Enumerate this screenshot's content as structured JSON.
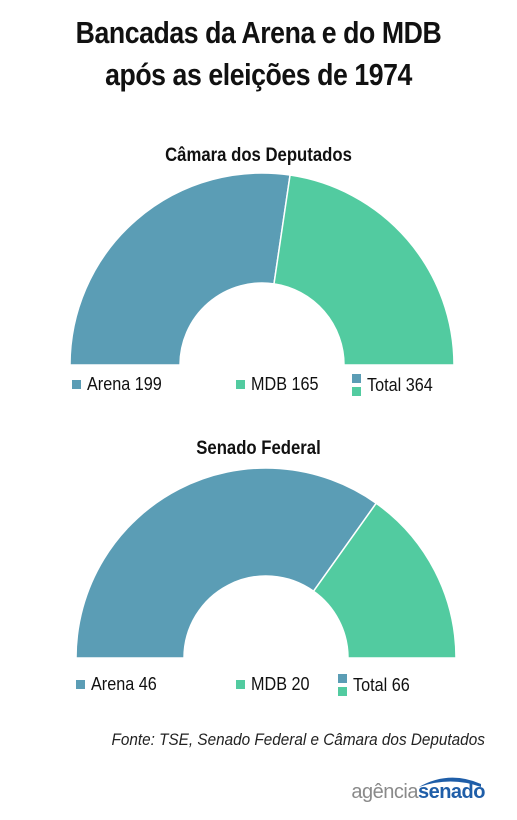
{
  "title": {
    "line1": "Bancadas da Arena e do MDB",
    "line2": "após as eleições de 1974"
  },
  "colors": {
    "arena": "#5b9db5",
    "mdb": "#52cba0"
  },
  "chart_data": [
    {
      "type": "pie",
      "subtype": "half-donut",
      "title": "Câmara dos Deputados",
      "series": [
        {
          "name": "Arena",
          "value": 199
        },
        {
          "name": "MDB",
          "value": 165
        }
      ],
      "legend": {
        "arena_label": "Arena 199",
        "mdb_label": "MDB 165",
        "total_label": "Total 364"
      },
      "total": 364
    },
    {
      "type": "pie",
      "subtype": "half-donut",
      "title": "Senado Federal",
      "series": [
        {
          "name": "Arena",
          "value": 46
        },
        {
          "name": "MDB",
          "value": 20
        }
      ],
      "legend": {
        "arena_label": "Arena 46",
        "mdb_label": "MDB 20",
        "total_label": "Total 66"
      },
      "total": 66
    }
  ],
  "source": "Fonte: TSE, Senado Federal e Câmara dos Deputados",
  "logo": {
    "part1": "agência",
    "part2": "senado"
  }
}
